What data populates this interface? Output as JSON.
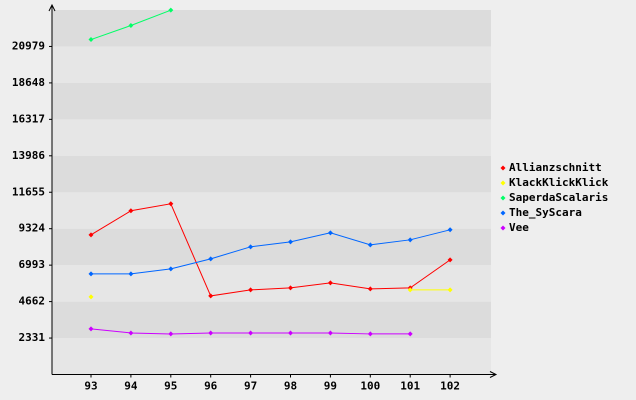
{
  "chart_data": {
    "type": "line",
    "categories": [
      "93",
      "94",
      "95",
      "96",
      "97",
      "98",
      "99",
      "100",
      "101",
      "102"
    ],
    "series": [
      {
        "name": "Allianzschnitt",
        "color": "#ff0000",
        "values": [
          8933,
          10470,
          10918,
          5027,
          5411,
          5539,
          5859,
          5475,
          5539,
          7332
        ]
      },
      {
        "name": "KlackKlickKlick",
        "color": "#ffff00",
        "values": [
          4963,
          null,
          null,
          null,
          null,
          null,
          null,
          null,
          5411,
          5411
        ]
      },
      {
        "name": "SaperdaScalaris",
        "color": "#00ff66",
        "values": [
          21421,
          22317,
          23300,
          null,
          null,
          null,
          null,
          null,
          null,
          null
        ]
      },
      {
        "name": "The_SyScara",
        "color": "#0066ff",
        "values": [
          6436,
          6436,
          6756,
          7396,
          8165,
          8485,
          9061,
          8293,
          8613,
          9253
        ]
      },
      {
        "name": "Vee",
        "color": "#cc00ff",
        "values": [
          2914,
          2657,
          2594,
          2657,
          2657,
          2657,
          2657,
          2594,
          2594,
          null
        ]
      }
    ],
    "ylim": [
      0,
      23310
    ],
    "yticks": [
      2331,
      4662,
      6993,
      9324,
      11655,
      13986,
      16317,
      18648,
      20979
    ],
    "grid": true
  }
}
